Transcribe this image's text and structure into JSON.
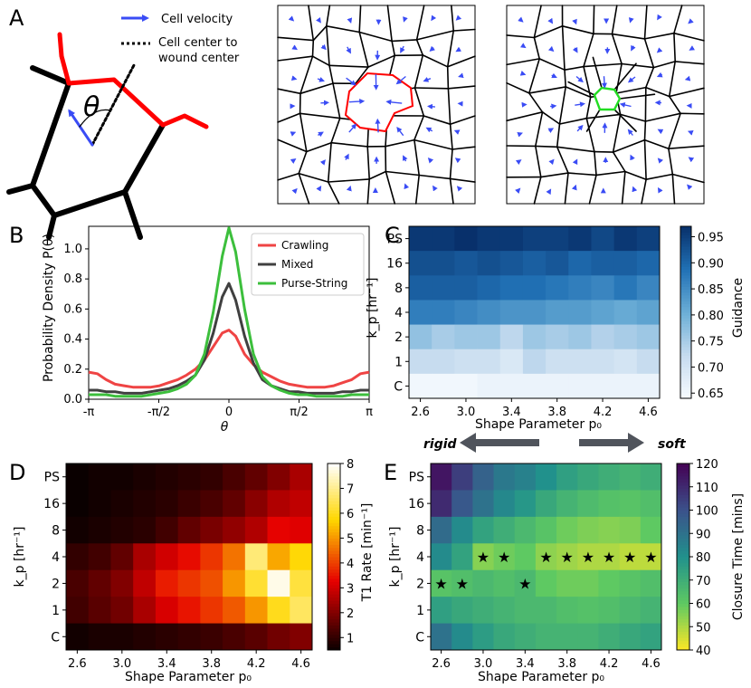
{
  "panel_labels": {
    "a": "A",
    "b": "B",
    "c": "C",
    "d": "D",
    "e": "E"
  },
  "panel_a": {
    "legend_velocity": "Cell velocity",
    "legend_center_line1": "Cell center to",
    "legend_center_line2": "wound center",
    "angle_symbol": "θ",
    "colors": {
      "velocity": "#3a4cf5",
      "wound_edge": "#ff0000",
      "healed_edge": "#22dd22",
      "cell_edge": "#000000"
    }
  },
  "direction_arrow": {
    "left": "rigid",
    "right": "soft"
  },
  "chart_data": [
    {
      "panel": "B",
      "type": "line",
      "ylabel": "Probability Density P(θ)",
      "xlabel": "θ",
      "xlim": [
        -3.1416,
        3.1416
      ],
      "ylim": [
        0,
        1.15
      ],
      "x_tick_labels": [
        "-π",
        "-π/2",
        "0",
        "π/2",
        "π"
      ],
      "y_tick_labels": [
        "0.0",
        "0.2",
        "0.4",
        "0.6",
        "0.8",
        "1.0"
      ],
      "legend": "top-right",
      "x": [
        -3.1416,
        -2.95,
        -2.75,
        -2.55,
        -2.35,
        -2.15,
        -1.95,
        -1.75,
        -1.55,
        -1.35,
        -1.15,
        -0.95,
        -0.75,
        -0.55,
        -0.35,
        -0.15,
        0,
        0.15,
        0.35,
        0.55,
        0.75,
        0.95,
        1.15,
        1.35,
        1.55,
        1.75,
        1.95,
        2.15,
        2.35,
        2.55,
        2.75,
        2.95,
        3.1416
      ],
      "series": [
        {
          "name": "Crawling",
          "color": "#ef4444",
          "values": [
            0.18,
            0.17,
            0.13,
            0.1,
            0.09,
            0.08,
            0.08,
            0.08,
            0.09,
            0.11,
            0.13,
            0.16,
            0.2,
            0.26,
            0.35,
            0.44,
            0.46,
            0.42,
            0.3,
            0.23,
            0.18,
            0.15,
            0.12,
            0.1,
            0.09,
            0.08,
            0.08,
            0.08,
            0.09,
            0.11,
            0.13,
            0.17,
            0.18
          ]
        },
        {
          "name": "Mixed",
          "color": "#404040",
          "values": [
            0.06,
            0.06,
            0.05,
            0.05,
            0.04,
            0.04,
            0.04,
            0.05,
            0.06,
            0.07,
            0.09,
            0.12,
            0.16,
            0.26,
            0.44,
            0.68,
            0.77,
            0.66,
            0.42,
            0.24,
            0.13,
            0.09,
            0.07,
            0.05,
            0.05,
            0.04,
            0.04,
            0.04,
            0.04,
            0.05,
            0.05,
            0.06,
            0.06
          ]
        },
        {
          "name": "Purse-String",
          "color": "#3cbf3c",
          "values": [
            0.03,
            0.03,
            0.03,
            0.02,
            0.02,
            0.02,
            0.02,
            0.03,
            0.04,
            0.05,
            0.07,
            0.1,
            0.16,
            0.3,
            0.58,
            0.95,
            1.14,
            0.98,
            0.6,
            0.3,
            0.15,
            0.09,
            0.06,
            0.04,
            0.03,
            0.03,
            0.02,
            0.02,
            0.02,
            0.02,
            0.03,
            0.03,
            0.03
          ]
        }
      ]
    },
    {
      "panel": "C",
      "type": "heatmap",
      "xlabel": "Shape Parameter p₀",
      "ylabel": "k_p [hr⁻¹]",
      "colorbar_label": "Guidance",
      "colormap": "Blues",
      "vmin": 0.64,
      "vmax": 0.97,
      "colorbar_ticks": [
        "0.65",
        "0.70",
        "0.75",
        "0.80",
        "0.85",
        "0.90",
        "0.95"
      ],
      "colorbar_tick_values": [
        0.65,
        0.7,
        0.75,
        0.8,
        0.85,
        0.9,
        0.95
      ],
      "x_tick_labels": [
        "2.6",
        "3.0",
        "3.4",
        "3.8",
        "4.2",
        "4.6"
      ],
      "rows": [
        "PS",
        "16",
        "8",
        "4",
        "2",
        "1",
        "C"
      ],
      "cols": [
        2.6,
        2.8,
        3.0,
        3.2,
        3.4,
        3.6,
        3.8,
        4.0,
        4.2,
        4.4,
        4.6
      ],
      "values": [
        [
          0.96,
          0.96,
          0.97,
          0.96,
          0.96,
          0.95,
          0.95,
          0.96,
          0.94,
          0.96,
          0.95
        ],
        [
          0.93,
          0.93,
          0.92,
          0.93,
          0.92,
          0.91,
          0.92,
          0.9,
          0.91,
          0.91,
          0.9
        ],
        [
          0.91,
          0.91,
          0.91,
          0.9,
          0.89,
          0.89,
          0.88,
          0.87,
          0.86,
          0.88,
          0.86
        ],
        [
          0.87,
          0.87,
          0.86,
          0.85,
          0.84,
          0.84,
          0.83,
          0.83,
          0.82,
          0.81,
          0.82
        ],
        [
          0.77,
          0.75,
          0.76,
          0.76,
          0.73,
          0.76,
          0.75,
          0.76,
          0.74,
          0.75,
          0.76
        ],
        [
          0.72,
          0.72,
          0.71,
          0.71,
          0.69,
          0.73,
          0.71,
          0.71,
          0.71,
          0.7,
          0.72
        ],
        [
          0.65,
          0.65,
          0.65,
          0.66,
          0.66,
          0.66,
          0.66,
          0.66,
          0.66,
          0.66,
          0.66
        ]
      ]
    },
    {
      "panel": "D",
      "type": "heatmap",
      "xlabel": "Shape Parameter p₀",
      "ylabel": "k_p [hr⁻¹]",
      "colorbar_label": "T1 Rate [min⁻¹]",
      "colormap": "hot",
      "vmin": 0.5,
      "vmax": 8,
      "colorbar_ticks": [
        "1",
        "2",
        "3",
        "4",
        "5",
        "6",
        "7",
        "8"
      ],
      "colorbar_tick_values": [
        1,
        2,
        3,
        4,
        5,
        6,
        7,
        8
      ],
      "x_tick_labels": [
        "2.6",
        "3.0",
        "3.4",
        "3.8",
        "4.2",
        "4.6"
      ],
      "rows": [
        "PS",
        "16",
        "8",
        "4",
        "2",
        "1",
        "C"
      ],
      "cols": [
        2.6,
        2.8,
        3.0,
        3.2,
        3.4,
        3.6,
        3.8,
        4.0,
        4.2,
        4.4,
        4.6
      ],
      "values": [
        [
          0.5,
          0.6,
          0.6,
          0.7,
          0.8,
          0.9,
          1.0,
          1.3,
          1.6,
          2.0,
          2.5
        ],
        [
          0.5,
          0.6,
          0.7,
          0.8,
          0.9,
          1.1,
          1.3,
          1.6,
          2.1,
          2.6,
          2.8
        ],
        [
          0.6,
          0.7,
          0.8,
          0.9,
          1.2,
          1.6,
          1.9,
          2.2,
          2.6,
          3.3,
          3.2
        ],
        [
          1.0,
          1.2,
          1.6,
          2.5,
          3.0,
          3.4,
          3.9,
          4.6,
          6.8,
          5.2,
          5.8
        ],
        [
          1.3,
          1.6,
          2.0,
          2.8,
          3.6,
          3.9,
          4.2,
          5.0,
          6.2,
          7.8,
          6.3
        ],
        [
          1.2,
          1.5,
          1.8,
          2.5,
          3.1,
          3.5,
          3.9,
          4.3,
          5.0,
          6.0,
          6.6
        ],
        [
          0.6,
          0.7,
          0.7,
          0.8,
          0.9,
          1.0,
          1.1,
          1.3,
          1.5,
          1.8,
          2.0
        ]
      ]
    },
    {
      "panel": "E",
      "type": "heatmap",
      "xlabel": "Shape Parameter p₀",
      "ylabel": "k_p [hr⁻¹]",
      "colorbar_label": "Closure Time [mins]",
      "colormap": "viridis_r",
      "vmin": 40,
      "vmax": 120,
      "colorbar_ticks": [
        "40",
        "50",
        "60",
        "70",
        "80",
        "90",
        "100",
        "110",
        "120"
      ],
      "colorbar_tick_values": [
        40,
        50,
        60,
        70,
        80,
        90,
        100,
        110,
        120
      ],
      "x_tick_labels": [
        "2.6",
        "3.0",
        "3.4",
        "3.8",
        "4.2",
        "4.6"
      ],
      "rows": [
        "PS",
        "16",
        "8",
        "4",
        "2",
        "1",
        "C"
      ],
      "cols": [
        2.6,
        2.8,
        3.0,
        3.2,
        3.4,
        3.6,
        3.8,
        4.0,
        4.2,
        4.4,
        4.6
      ],
      "values": [
        [
          115,
          105,
          95,
          88,
          85,
          80,
          75,
          72,
          70,
          68,
          70
        ],
        [
          110,
          98,
          90,
          83,
          78,
          72,
          68,
          65,
          63,
          62,
          64
        ],
        [
          92,
          82,
          74,
          70,
          66,
          62,
          58,
          56,
          55,
          56,
          60
        ],
        [
          82,
          74,
          55,
          58,
          60,
          54,
          52,
          50,
          50,
          48,
          48
        ],
        [
          62,
          64,
          66,
          64,
          66,
          60,
          58,
          58,
          60,
          62,
          64
        ],
        [
          75,
          72,
          70,
          68,
          66,
          66,
          64,
          63,
          64,
          66,
          68
        ],
        [
          90,
          82,
          76,
          72,
          70,
          68,
          68,
          68,
          70,
          72,
          74
        ]
      ],
      "star_marker": "★",
      "stars": [
        [
          3,
          2
        ],
        [
          3,
          3
        ],
        [
          3,
          5
        ],
        [
          3,
          6
        ],
        [
          3,
          7
        ],
        [
          3,
          8
        ],
        [
          3,
          9
        ],
        [
          3,
          10
        ],
        [
          4,
          0
        ],
        [
          4,
          1
        ],
        [
          4,
          4
        ]
      ]
    }
  ]
}
